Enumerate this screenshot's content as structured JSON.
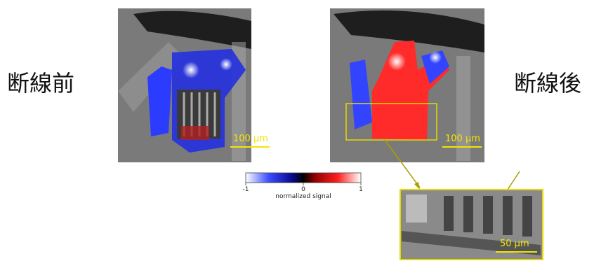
{
  "labels": {
    "before": "断線前",
    "after": "断線後"
  },
  "panels": [
    {
      "scale_bar": "100 μm"
    },
    {
      "scale_bar": "100 μm"
    },
    {
      "scale_bar": "50 μm"
    }
  ],
  "colorbar": {
    "min": -1,
    "max": 1,
    "ticks": [
      -1,
      0,
      1
    ],
    "label": "normalized signal"
  }
}
